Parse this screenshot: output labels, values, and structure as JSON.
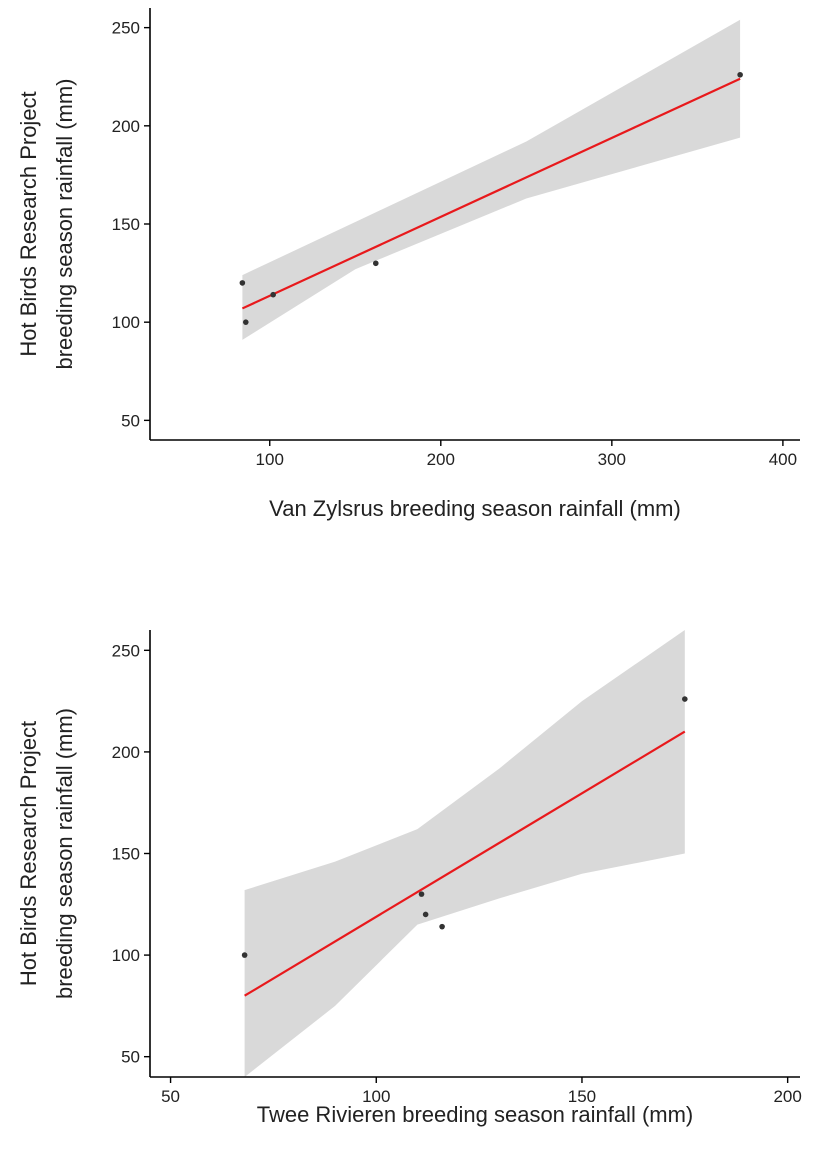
{
  "chart_data": [
    {
      "type": "scatter",
      "xlabel": "Van Zylsrus breeding season rainfall (mm)",
      "ylabel": [
        "Hot Birds Research Project",
        "breeding season rainfall (mm)"
      ],
      "xlim": [
        30,
        410
      ],
      "ylim": [
        40,
        260
      ],
      "xticks": [
        100,
        200,
        300,
        400
      ],
      "yticks": [
        50,
        100,
        150,
        200,
        250
      ],
      "grid": false,
      "points": [
        {
          "x": 84,
          "y": 120
        },
        {
          "x": 86,
          "y": 100
        },
        {
          "x": 102,
          "y": 114
        },
        {
          "x": 162,
          "y": 130
        },
        {
          "x": 375,
          "y": 226
        }
      ],
      "trend_line": {
        "x": [
          84,
          375
        ],
        "y": [
          107,
          224
        ],
        "color": "#e8191c"
      },
      "confidence_band": {
        "x": [
          84,
          150,
          250,
          375
        ],
        "lower": [
          91,
          127,
          163,
          194
        ],
        "upper": [
          124,
          151,
          192,
          254
        ],
        "color": "#d9d9d9"
      }
    },
    {
      "type": "scatter",
      "xlabel": "Twee Rivieren breeding season rainfall (mm)",
      "ylabel": [
        "Hot Birds Research Project",
        "breeding season rainfall (mm)"
      ],
      "xlim": [
        45,
        203
      ],
      "ylim": [
        40,
        260
      ],
      "xticks": [
        50,
        100,
        150,
        200
      ],
      "yticks": [
        50,
        100,
        150,
        200,
        250
      ],
      "grid": false,
      "points": [
        {
          "x": 68,
          "y": 100
        },
        {
          "x": 111,
          "y": 130
        },
        {
          "x": 112,
          "y": 120
        },
        {
          "x": 116,
          "y": 114
        },
        {
          "x": 175,
          "y": 226
        }
      ],
      "trend_line": {
        "x": [
          68,
          175
        ],
        "y": [
          80,
          210
        ],
        "color": "#e8191c"
      },
      "confidence_band": {
        "x": [
          68,
          90,
          110,
          130,
          150,
          175
        ],
        "lower": [
          28,
          75,
          115,
          128,
          140,
          150
        ],
        "upper": [
          132,
          146,
          162,
          192,
          225,
          268
        ],
        "color": "#d9d9d9"
      }
    }
  ]
}
